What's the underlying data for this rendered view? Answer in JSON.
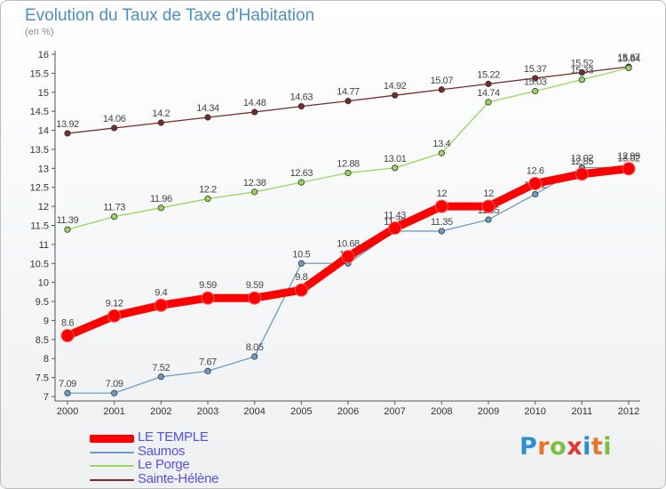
{
  "title": "Evolution du Taux de Taxe d'Habitation",
  "unit_label": "(en %)",
  "brand": {
    "letters": [
      "P",
      "r",
      "o",
      "x",
      "i",
      "t",
      "i"
    ],
    "colors": [
      "#2e8fd0",
      "#e6732a",
      "#7dbf3f",
      "#e03a2f",
      "#2e8fd0",
      "#e6732a",
      "#7dbf3f"
    ]
  },
  "chart_data": {
    "type": "line",
    "x": [
      "2000",
      "2001",
      "2002",
      "2003",
      "2004",
      "2005",
      "2006",
      "2007",
      "2008",
      "2009",
      "2010",
      "2011",
      "2012"
    ],
    "ylim": [
      7,
      16
    ],
    "yticks": [
      "7",
      "7.5",
      "8",
      "8.5",
      "9",
      "9.5",
      "10",
      "10.5",
      "11",
      "11.5",
      "12",
      "12.5",
      "13",
      "13.5",
      "14",
      "14.5",
      "15",
      "15.5",
      "16"
    ],
    "grid": false,
    "legend_position": "bottom-left",
    "series": [
      {
        "name": "LE TEMPLE",
        "color": "#ff0000",
        "values": [
          8.6,
          9.12,
          9.4,
          9.59,
          9.59,
          9.8,
          10.68,
          11.43,
          12,
          12,
          12.6,
          12.85,
          12.99
        ],
        "labels": [
          "8.6",
          "9.12",
          "9.4",
          "9.59",
          "9.59",
          "9.8",
          "10.68",
          "11.43",
          "12",
          "12",
          "12.6",
          "12.85",
          "12.99"
        ]
      },
      {
        "name": "Saumos",
        "color": "#6d9cc6",
        "values": [
          7.09,
          7.09,
          7.52,
          7.67,
          8.05,
          10.5,
          10.5,
          11.35,
          11.35,
          11.65,
          12.32,
          13.02,
          13.02
        ],
        "labels": [
          "7.09",
          "7.09",
          "7.52",
          "7.67",
          "8.05",
          "10.5",
          "10.5",
          "11.35",
          "11.35",
          "11.65",
          "12.32",
          "13.02",
          "13.02"
        ]
      },
      {
        "name": "Le Porge",
        "color": "#99d55a",
        "values": [
          11.39,
          11.73,
          11.96,
          12.2,
          12.38,
          12.63,
          12.88,
          13.01,
          13.4,
          14.74,
          15.03,
          15.33,
          15.64
        ],
        "labels": [
          "11.39",
          "11.73",
          "11.96",
          "12.2",
          "12.38",
          "12.63",
          "12.88",
          "13.01",
          "13.4",
          "14.74",
          "15.03",
          "15.33",
          "15.64"
        ]
      },
      {
        "name": "Sainte-Hélène",
        "color": "#7a2a2a",
        "values": [
          13.92,
          14.06,
          14.2,
          14.34,
          14.48,
          14.63,
          14.77,
          14.92,
          15.07,
          15.22,
          15.37,
          15.52,
          15.67
        ],
        "labels": [
          "13.92",
          "14.06",
          "14.2",
          "14.34",
          "14.48",
          "14.63",
          "14.77",
          "14.92",
          "15.07",
          "15.22",
          "15.37",
          "15.52",
          "15.67"
        ]
      }
    ]
  }
}
